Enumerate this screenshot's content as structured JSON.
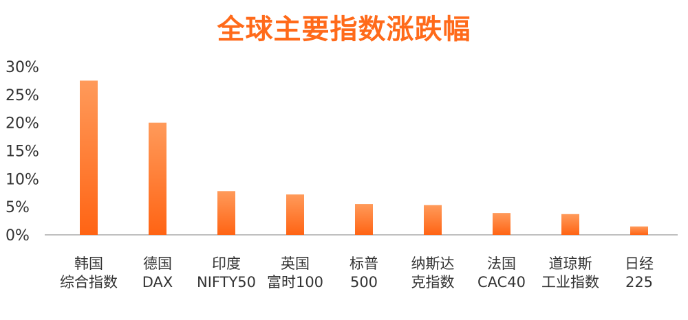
{
  "chart_data": {
    "type": "bar",
    "title": "全球主要指数涨跌幅",
    "categories": [
      [
        "韩国",
        "综合指数"
      ],
      [
        "德国",
        "DAX"
      ],
      [
        "印度",
        "NIFTY50"
      ],
      [
        "英国",
        "富时100"
      ],
      [
        "标普",
        "500"
      ],
      [
        "纳斯达",
        "克指数"
      ],
      [
        "法国",
        "CAC40"
      ],
      [
        "道琼斯",
        "工业指数"
      ],
      [
        "日经",
        "225"
      ]
    ],
    "values": [
      27.5,
      20.0,
      7.8,
      7.2,
      5.5,
      5.3,
      3.9,
      3.7,
      1.5
    ],
    "ylim": [
      0,
      30
    ],
    "yticks": [
      "0%",
      "5%",
      "10%",
      "15%",
      "20%",
      "25%",
      "30%"
    ],
    "xlabel": "",
    "ylabel": "",
    "grid": false,
    "bar_color_top": "#ff9a5a",
    "bar_color_bottom": "#ff6414"
  }
}
